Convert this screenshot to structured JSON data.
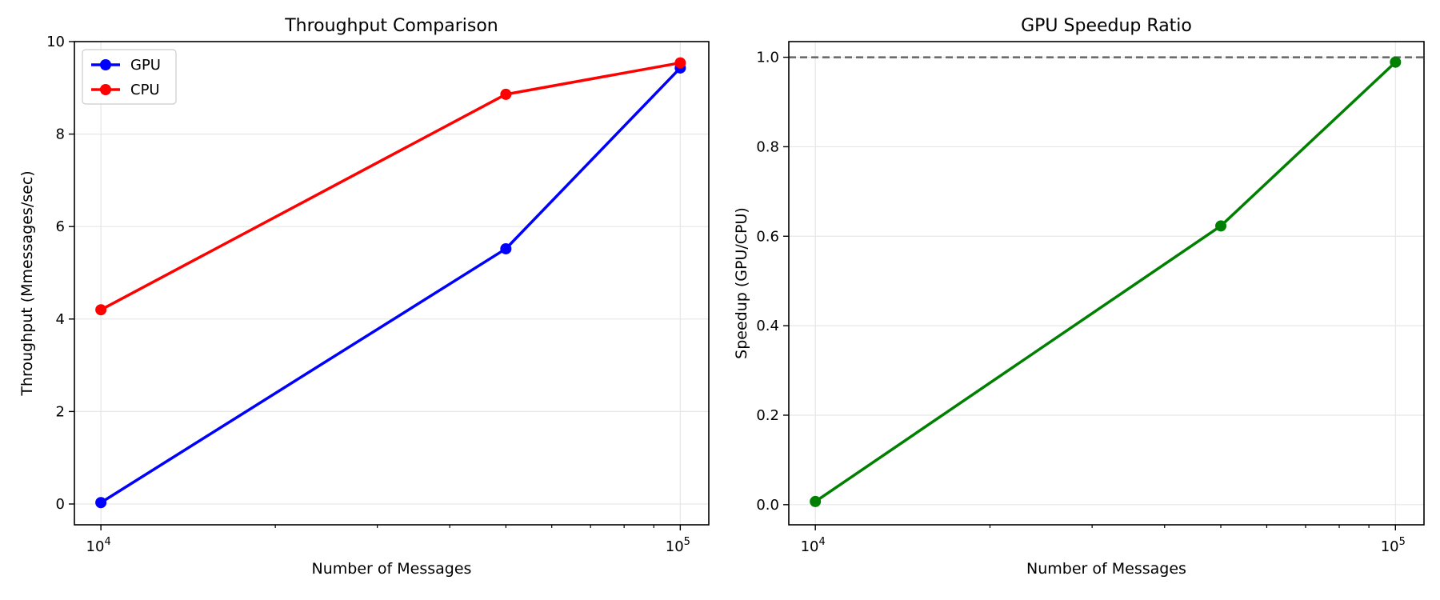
{
  "chart_data": [
    {
      "type": "line",
      "title": "Throughput Comparison",
      "xlabel": "Number of Messages",
      "ylabel": "Throughput (Mmessages/sec)",
      "x_scale": "log",
      "xlim": [
        9000,
        112000
      ],
      "ylim": [
        -0.45,
        10
      ],
      "x": [
        10000,
        50000,
        100000
      ],
      "x_ticks": [
        {
          "value": 10000,
          "base": "10",
          "exp": "4"
        },
        {
          "value": 100000,
          "base": "10",
          "exp": "5"
        }
      ],
      "y_ticks": [
        0,
        2,
        4,
        6,
        8,
        10
      ],
      "grid": true,
      "legend": "upper-left",
      "series": [
        {
          "name": "GPU",
          "values": [
            0.03,
            5.52,
            9.43
          ],
          "color": "#0000ff"
        },
        {
          "name": "CPU",
          "values": [
            4.2,
            8.86,
            9.54
          ],
          "color": "#ff0000"
        }
      ]
    },
    {
      "type": "line",
      "title": "GPU Speedup Ratio",
      "xlabel": "Number of Messages",
      "ylabel": "Speedup (GPU/CPU)",
      "x_scale": "log",
      "xlim": [
        9000,
        112000
      ],
      "ylim": [
        -0.045,
        1.035
      ],
      "x": [
        10000,
        50000,
        100000
      ],
      "x_ticks": [
        {
          "value": 10000,
          "base": "10",
          "exp": "4"
        },
        {
          "value": 100000,
          "base": "10",
          "exp": "5"
        }
      ],
      "y_ticks": [
        0.0,
        0.2,
        0.4,
        0.6,
        0.8,
        1.0
      ],
      "grid": true,
      "reference_line": {
        "y": 1.0,
        "style": "dashed",
        "color": "#666666"
      },
      "series": [
        {
          "values": [
            0.007,
            0.623,
            0.989
          ],
          "color": "#008000"
        }
      ]
    }
  ]
}
